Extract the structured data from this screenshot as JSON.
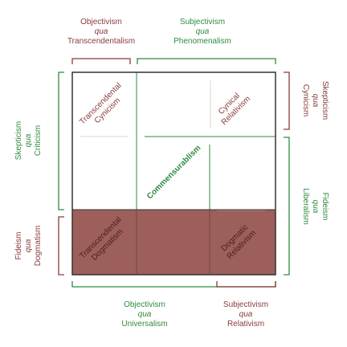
{
  "colors": {
    "red": "#8b3a3a",
    "green": "#2e8b3e",
    "fill": "#9c5f5a",
    "border": "#333333",
    "inner_line": "#e6e6dc"
  },
  "top_left_label": {
    "line1": "Objectivism",
    "line2": "qua",
    "line3": "Transcendentalism"
  },
  "top_right_label": {
    "line1": "Subjectivism",
    "line2": "qua",
    "line3": "Phenomenalism"
  },
  "bottom_left_label": {
    "line1": "Objectivism",
    "line2": "qua",
    "line3": "Universalism"
  },
  "bottom_right_label": {
    "line1": "Subjectivism",
    "line2": "qua",
    "line3": "Relativism"
  },
  "left_upper_label": {
    "line1": "Skepticism",
    "line2": "qua",
    "line3": "Criticism"
  },
  "left_lower_label": {
    "line1": "Fideism",
    "line2": "qua",
    "line3": "Dogmatism"
  },
  "right_upper_label": {
    "line1": "Skepticism",
    "line2": "qua",
    "line3": "Cynicism"
  },
  "right_lower_label": {
    "line1": "Fideism",
    "line2": "qua",
    "line3": "Liberalism"
  },
  "cells": {
    "transcendental_cynicism": {
      "line1": "Transcendental",
      "line2": "Cynicism"
    },
    "cynical_relativism": {
      "line1": "Cynical",
      "line2": "Relativism"
    },
    "commensurablism": "Commensurablism",
    "transcendental_dogmatism": {
      "line1": "Transcendental",
      "line2": "Dogmatism"
    },
    "dogmatic_relativism": {
      "line1": "Dogmatic",
      "line2": "Relativism"
    }
  }
}
